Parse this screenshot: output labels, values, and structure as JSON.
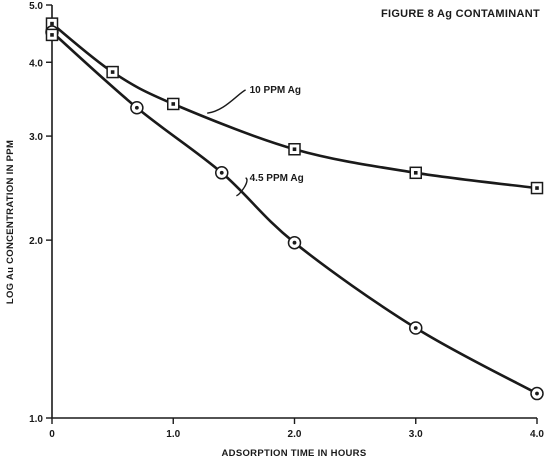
{
  "chart_data": {
    "type": "line",
    "title": "FIGURE 8 Ag CONTAMINANT",
    "xlabel": "ADSORPTION TIME IN HOURS",
    "ylabel": "LOG Au CONCENTRATION IN PPM",
    "y_scale": "log",
    "xlim": [
      0,
      4.0
    ],
    "ylim": [
      1.0,
      5.0
    ],
    "x_ticks": [
      {
        "value": 0,
        "label": "0"
      },
      {
        "value": 1.0,
        "label": "1.0"
      },
      {
        "value": 2.0,
        "label": "2.0"
      },
      {
        "value": 3.0,
        "label": "3.0"
      },
      {
        "value": 4.0,
        "label": "4.0"
      }
    ],
    "y_ticks": [
      {
        "value": 1.0,
        "label": "1.0"
      },
      {
        "value": 2.0,
        "label": "2.0"
      },
      {
        "value": 3.0,
        "label": "3.0"
      },
      {
        "value": 4.0,
        "label": "4.0"
      },
      {
        "value": 5.0,
        "label": "5.0"
      }
    ],
    "grid": false,
    "series": [
      {
        "name": "10 PPM Ag",
        "marker": "square",
        "x": [
          0,
          0.5,
          1.0,
          2.0,
          3.0,
          4.0
        ],
        "y": [
          4.65,
          3.85,
          3.4,
          2.85,
          2.6,
          2.45
        ],
        "label_at": {
          "x": 1.63,
          "y": 3.55
        },
        "leader_to": {
          "x": 1.28,
          "y": 3.28
        }
      },
      {
        "name": "4.5 PPM Ag",
        "marker": "circle",
        "x": [
          0,
          0.7,
          1.4,
          2.0,
          3.0,
          4.0
        ],
        "y": [
          4.5,
          3.35,
          2.6,
          1.98,
          1.42,
          1.1
        ],
        "label_at": {
          "x": 1.63,
          "y": 2.52
        },
        "leader_to": {
          "x": 1.52,
          "y": 2.38
        }
      }
    ],
    "extra_markers": [
      {
        "marker": "square",
        "x": 0,
        "y": 4.45
      }
    ]
  }
}
